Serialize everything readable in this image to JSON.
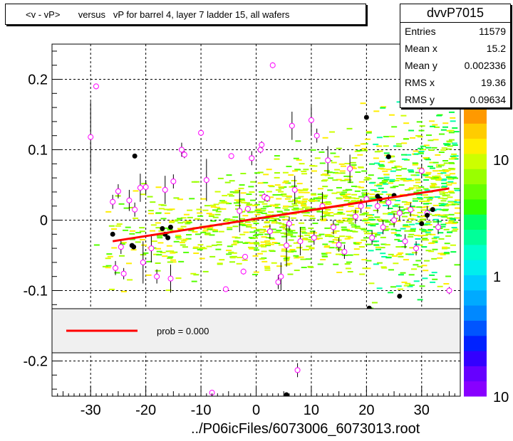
{
  "title": "<v - vP>       versus   vP for barrel 4, layer 7 ladder 15, all wafers",
  "stats": {
    "name": "dvvP7015",
    "rows": [
      {
        "label": "Entries",
        "value": "11579"
      },
      {
        "label": "Mean x",
        "value": "15.2"
      },
      {
        "label": "Mean y",
        "value": "0.002336"
      },
      {
        "label": "RMS x",
        "value": "19.36"
      },
      {
        "label": "RMS y",
        "value": "0.09634"
      }
    ]
  },
  "footer": "../P06icFiles/6073006_6073013.root",
  "legend": {
    "text": "prob = 0.000",
    "line_color": "#ff0000"
  },
  "colors": {
    "fit": "#ff0000",
    "profile": "#ff00ff",
    "points": "#000000"
  },
  "chart_data": {
    "type": "scatter",
    "xlim": [
      -37,
      37
    ],
    "ylim": [
      -0.25,
      0.25
    ],
    "x_ticks": [
      -30,
      -20,
      -10,
      0,
      10,
      20,
      30
    ],
    "y_ticks": [
      -0.2,
      -0.1,
      0,
      0.1,
      0.2
    ],
    "x_tick_labels": [
      "-30",
      "-20",
      "-10",
      "0",
      "10",
      "20",
      "30"
    ],
    "y_tick_labels": [
      "-0.2",
      "-0.1",
      "0",
      "0.1",
      "0.2"
    ],
    "grid": true,
    "colorbar": {
      "labels": [
        "10",
        "1",
        "10"
      ],
      "scale": "log"
    },
    "fit_line": {
      "x": [
        -26,
        35
      ],
      "y": [
        -0.03,
        0.045
      ]
    },
    "profile_points": [
      {
        "x": -30,
        "y": 0.118,
        "err": 0.05
      },
      {
        "x": -29,
        "y": 0.19,
        "err": 0.004
      },
      {
        "x": -26,
        "y": 0.026,
        "err": 0.01
      },
      {
        "x": -25,
        "y": 0.041,
        "err": 0.01
      },
      {
        "x": -24.5,
        "y": -0.038,
        "err": 0.01
      },
      {
        "x": -25.5,
        "y": -0.068,
        "err": 0.01
      },
      {
        "x": -24,
        "y": -0.076,
        "err": 0.008
      },
      {
        "x": -23,
        "y": 0.028,
        "err": 0.015
      },
      {
        "x": -22,
        "y": 0.015,
        "err": 0.01
      },
      {
        "x": -21,
        "y": 0.046,
        "err": 0.02
      },
      {
        "x": -20.5,
        "y": -0.06,
        "err": 0.03
      },
      {
        "x": -20,
        "y": 0.047,
        "err": 0.01
      },
      {
        "x": -19,
        "y": -0.04,
        "err": 0.02
      },
      {
        "x": -18,
        "y": -0.08,
        "err": 0.01
      },
      {
        "x": -16.5,
        "y": 0.043,
        "err": 0.02
      },
      {
        "x": -15.5,
        "y": -0.083,
        "err": 0.02
      },
      {
        "x": -15,
        "y": 0.055,
        "err": 0.01
      },
      {
        "x": -13.5,
        "y": 0.1,
        "err": 0.01
      },
      {
        "x": -13,
        "y": 0.093,
        "err": 0.005
      },
      {
        "x": -10,
        "y": 0.124,
        "err": 0.004
      },
      {
        "x": -9,
        "y": 0.057,
        "err": 0.03
      },
      {
        "x": -8,
        "y": -0.245,
        "err": 0.003
      },
      {
        "x": -5.5,
        "y": -0.098,
        "err": 0.003
      },
      {
        "x": -4.5,
        "y": 0.091,
        "err": 0.004
      },
      {
        "x": -3,
        "y": 0.013,
        "err": 0.03
      },
      {
        "x": -2,
        "y": -0.052,
        "err": 0.004
      },
      {
        "x": -2.3,
        "y": -0.073,
        "err": 0.004
      },
      {
        "x": -1.5,
        "y": 0.016,
        "err": 0.004
      },
      {
        "x": -0.8,
        "y": 0.088,
        "err": 0.01
      },
      {
        "x": 0.8,
        "y": 0.1,
        "err": 0.005
      },
      {
        "x": 1,
        "y": 0.107,
        "err": 0.005
      },
      {
        "x": 1.5,
        "y": 0.033,
        "err": 0.005
      },
      {
        "x": 2,
        "y": 0.031,
        "err": 0.005
      },
      {
        "x": 2.5,
        "y": -0.016,
        "err": 0.01
      },
      {
        "x": 3,
        "y": 0.22,
        "err": 0.004
      },
      {
        "x": 4,
        "y": -0.088,
        "err": 0.01
      },
      {
        "x": 4.5,
        "y": -0.08,
        "err": 0.02
      },
      {
        "x": 5.5,
        "y": -0.036,
        "err": 0.03
      },
      {
        "x": 6,
        "y": -0.005,
        "err": 0.01
      },
      {
        "x": 6.5,
        "y": 0.134,
        "err": 0.02
      },
      {
        "x": 7,
        "y": 0.043,
        "err": 0.02
      },
      {
        "x": 7.5,
        "y": -0.213,
        "err": 0.01
      },
      {
        "x": 8,
        "y": -0.03,
        "err": 0.02
      },
      {
        "x": 10,
        "y": 0.142,
        "err": 0.02
      },
      {
        "x": 10.5,
        "y": -0.025,
        "err": 0.01
      },
      {
        "x": 11,
        "y": 0.12,
        "err": 0.01
      },
      {
        "x": 12,
        "y": 0.02,
        "err": 0.02
      },
      {
        "x": 13,
        "y": 0.085,
        "err": 0.02
      },
      {
        "x": 14,
        "y": -0.01,
        "err": 0.01
      },
      {
        "x": 15,
        "y": -0.035,
        "err": 0.01
      },
      {
        "x": 16,
        "y": -0.045,
        "err": 0.01
      },
      {
        "x": 17,
        "y": 0.073,
        "err": 0.02
      },
      {
        "x": 18,
        "y": 0.005,
        "err": 0.01
      },
      {
        "x": 19,
        "y": 0.02,
        "err": 0.01
      },
      {
        "x": 20,
        "y": 0.03,
        "err": 0.01
      },
      {
        "x": 21,
        "y": -0.025,
        "err": 0.01
      },
      {
        "x": 22,
        "y": 0.02,
        "err": 0.01
      },
      {
        "x": 23,
        "y": -0.01,
        "err": 0.01
      },
      {
        "x": 24,
        "y": 0.025,
        "err": 0.01
      },
      {
        "x": 25,
        "y": 0.0,
        "err": 0.01
      },
      {
        "x": 26,
        "y": 0.01,
        "err": 0.01
      },
      {
        "x": 27,
        "y": -0.03,
        "err": 0.01
      },
      {
        "x": 28,
        "y": 0.015,
        "err": 0.01
      },
      {
        "x": 29,
        "y": -0.04,
        "err": 0.01
      },
      {
        "x": 30,
        "y": 0.07,
        "err": 0.01
      },
      {
        "x": 31,
        "y": 0.01,
        "err": 0.01
      },
      {
        "x": 33,
        "y": -0.01,
        "err": 0.01
      },
      {
        "x": 35,
        "y": -0.1,
        "err": 0.005
      }
    ],
    "black_points": [
      {
        "x": -26,
        "y": -0.02
      },
      {
        "x": -22,
        "y": 0.091
      },
      {
        "x": -22.5,
        "y": -0.036
      },
      {
        "x": -22.2,
        "y": -0.038
      },
      {
        "x": -17,
        "y": -0.012
      },
      {
        "x": -16.5,
        "y": -0.02
      },
      {
        "x": -16,
        "y": -0.025
      },
      {
        "x": -15.5,
        "y": -0.01
      },
      {
        "x": 5.5,
        "y": -0.248
      },
      {
        "x": 20,
        "y": 0.146
      },
      {
        "x": 20.5,
        "y": -0.125
      },
      {
        "x": 22,
        "y": 0.034
      },
      {
        "x": 22.5,
        "y": 0.03
      },
      {
        "x": 24,
        "y": 0.09
      },
      {
        "x": 25,
        "y": 0.035
      },
      {
        "x": 26,
        "y": -0.108
      },
      {
        "x": 30,
        "y": -0.005
      },
      {
        "x": 31,
        "y": 0.007
      },
      {
        "x": 32,
        "y": 0.015
      }
    ]
  }
}
